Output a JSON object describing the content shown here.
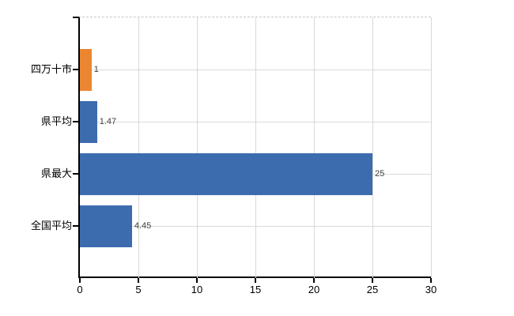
{
  "chart_data": {
    "type": "bar",
    "orientation": "horizontal",
    "title": "",
    "xlabel": "",
    "ylabel": "",
    "categories": [
      "四万十市",
      "県平均",
      "県最大",
      "全国平均"
    ],
    "values": [
      1,
      1.47,
      25,
      4.45
    ],
    "value_labels": [
      "1",
      "1.47",
      "25",
      "4.45"
    ],
    "bar_colors": [
      "#EB8630",
      "#3D6CAE",
      "#3D6CAE",
      "#3D6CAE"
    ],
    "xlim": [
      0,
      30
    ],
    "x_ticks": [
      0,
      5,
      10,
      15,
      20,
      25,
      30
    ],
    "x_tick_labels": [
      "0",
      "5",
      "10",
      "15",
      "20",
      "25",
      "30"
    ],
    "grid": true,
    "legend": "none",
    "background_color": "#FFFFFF",
    "axis_color": "#000000",
    "gridline_color": "#D9D9D9",
    "top_border_style": "dashed"
  }
}
